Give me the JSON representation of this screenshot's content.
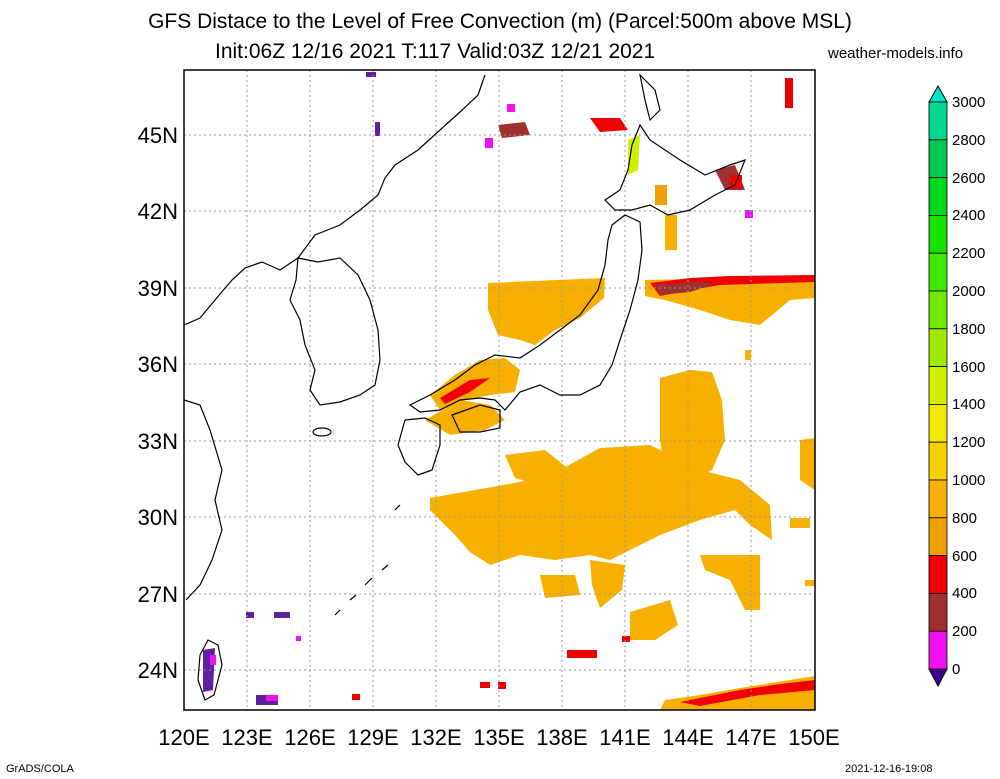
{
  "title_line1": "GFS Distace to the Level of Free Convection (m) (Parcel:500m above MSL)",
  "title_line2": "Init:06Z 12/16 2021 T:117 Valid:03Z 12/21 2021",
  "credit": "weather-models.info",
  "footer_left": "GrADS/COLA",
  "footer_right": "2021-12-16-19:08",
  "map": {
    "lon_labels": [
      "120E",
      "123E",
      "126E",
      "129E",
      "132E",
      "135E",
      "138E",
      "141E",
      "144E",
      "147E",
      "150E"
    ],
    "lat_labels": [
      "45N",
      "42N",
      "39N",
      "36N",
      "33N",
      "30N",
      "27N",
      "24N"
    ]
  },
  "colorbar": {
    "labels": [
      "3000",
      "2800",
      "2600",
      "2400",
      "2200",
      "2000",
      "1800",
      "1600",
      "1400",
      "1200",
      "1000",
      "800",
      "600",
      "400",
      "200",
      "0"
    ],
    "colors": [
      "#00e8c8",
      "#00d890",
      "#00c850",
      "#00d820",
      "#18e000",
      "#40e800",
      "#70e800",
      "#a0e800",
      "#d0f000",
      "#f0e800",
      "#f8d000",
      "#f8b000",
      "#f0a000",
      "#f00000",
      "#a03030",
      "#f010f0",
      "#3c008c"
    ]
  }
}
